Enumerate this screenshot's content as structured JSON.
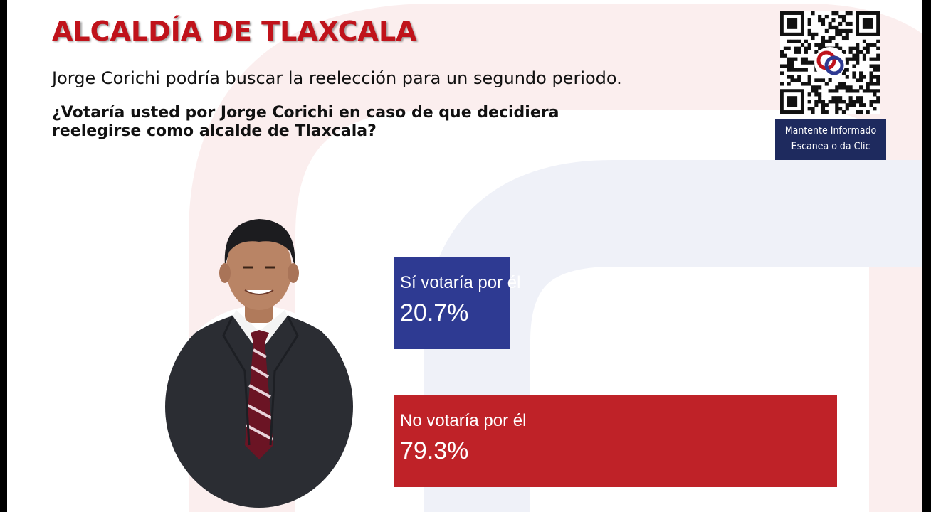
{
  "header": {
    "title": "ALCALDÍA DE TLAXCALA",
    "subtitle": "Jorge Corichi podría buscar la reelección para un segundo periodo.",
    "question_line1": "¿Votaría usted por Jorge Corichi en caso de que decidiera",
    "question_line2": "reelegirse como alcalde de Tlaxcala?"
  },
  "qr": {
    "caption_line1": "Mantente Informado",
    "caption_line2": "Escanea o da Clic"
  },
  "colors": {
    "title_red": "#c0131b",
    "bar_si": "#2e3a92",
    "bar_no": "#bf2228",
    "caption_bg": "#1e2a5e"
  },
  "chart_data": {
    "type": "bar",
    "orientation": "horizontal",
    "categories": [
      "Sí votaría por él",
      "No votaría por él"
    ],
    "values": [
      20.7,
      79.3
    ],
    "value_labels": [
      "20.7%",
      "79.3%"
    ],
    "xlim": [
      0,
      100
    ],
    "grid": false
  }
}
